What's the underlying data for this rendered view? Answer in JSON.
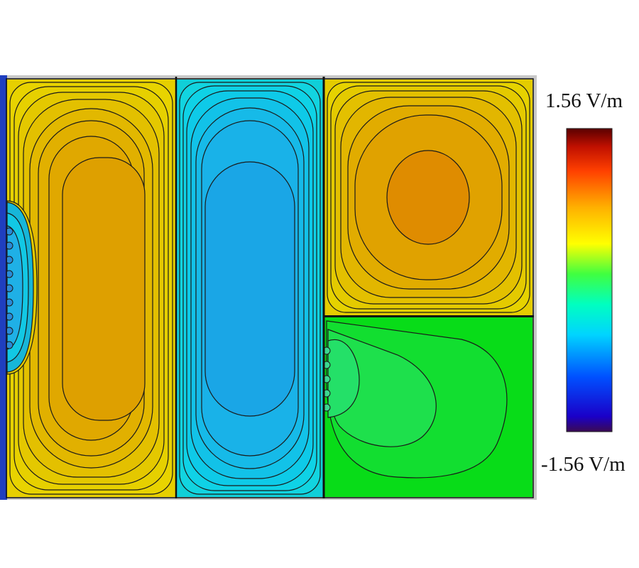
{
  "colorbar": {
    "max_label": "1.56 V/m",
    "min_label": "-1.56 V/m",
    "max_value": 1.56,
    "min_value": -1.56,
    "unit": "V/m",
    "colormap": [
      "#3b0a52",
      "#1a00c8",
      "#0050ff",
      "#00d4ff",
      "#00ffc0",
      "#40ff40",
      "#ffff00",
      "#ffb000",
      "#ff4000",
      "#c01000",
      "#5a0000"
    ]
  },
  "regions": [
    {
      "id": "left-column",
      "base_color": "#e3d600",
      "core_color": "#e0a000",
      "field_sign": "positive"
    },
    {
      "id": "middle-column",
      "base_color": "#10d8e8",
      "core_color": "#1aa8e8",
      "field_sign": "negative"
    },
    {
      "id": "upper-right-cell",
      "base_color": "#e6d400",
      "core_color": "#e08a00",
      "field_sign": "positive"
    },
    {
      "id": "lower-right-cell",
      "base_color": "#10dc24",
      "core_color": "#22e060",
      "field_sign": "near-zero"
    }
  ],
  "colors": {
    "contour_line": "#1a1a1a",
    "left_edge": "#1f3fbf",
    "frame_border": "#777777"
  }
}
